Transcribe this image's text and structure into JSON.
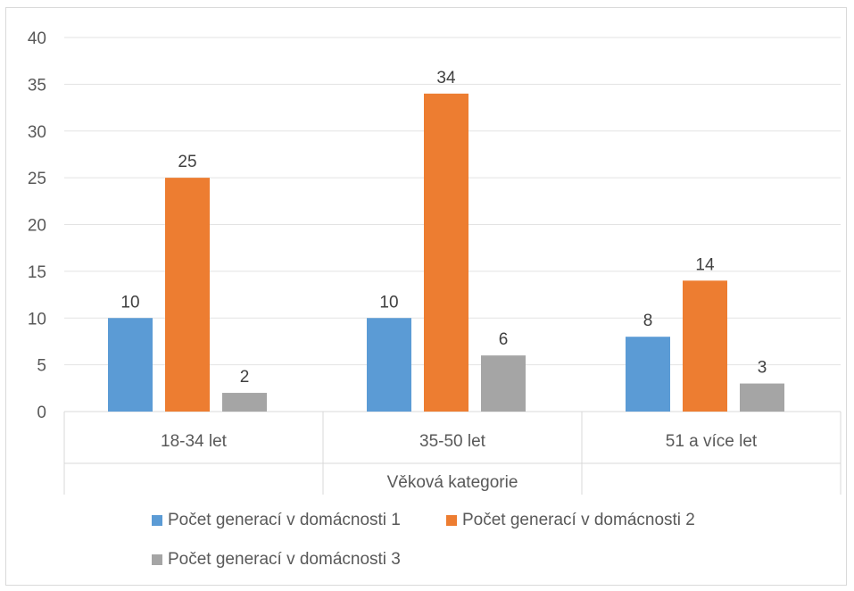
{
  "chart_data": {
    "type": "bar",
    "categories": [
      "18-34 let",
      "35-50 let",
      "51 a více let"
    ],
    "series": [
      {
        "name": "Počet generací v domácnosti 1",
        "values": [
          10,
          10,
          8
        ],
        "color": "#5b9bd5"
      },
      {
        "name": "Počet generací v domácnosti 2",
        "values": [
          25,
          34,
          14
        ],
        "color": "#ed7d31"
      },
      {
        "name": "Počet generací v domácnosti 3",
        "values": [
          2,
          6,
          3
        ],
        "color": "#a5a5a5"
      }
    ],
    "title": "",
    "xlabel": "Věková kategorie",
    "ylabel": "",
    "ylim": [
      0,
      40
    ],
    "yticks": [
      0,
      5,
      10,
      15,
      20,
      25,
      30,
      35,
      40
    ],
    "grid": true,
    "data_labels": true,
    "legend_position": "bottom"
  }
}
